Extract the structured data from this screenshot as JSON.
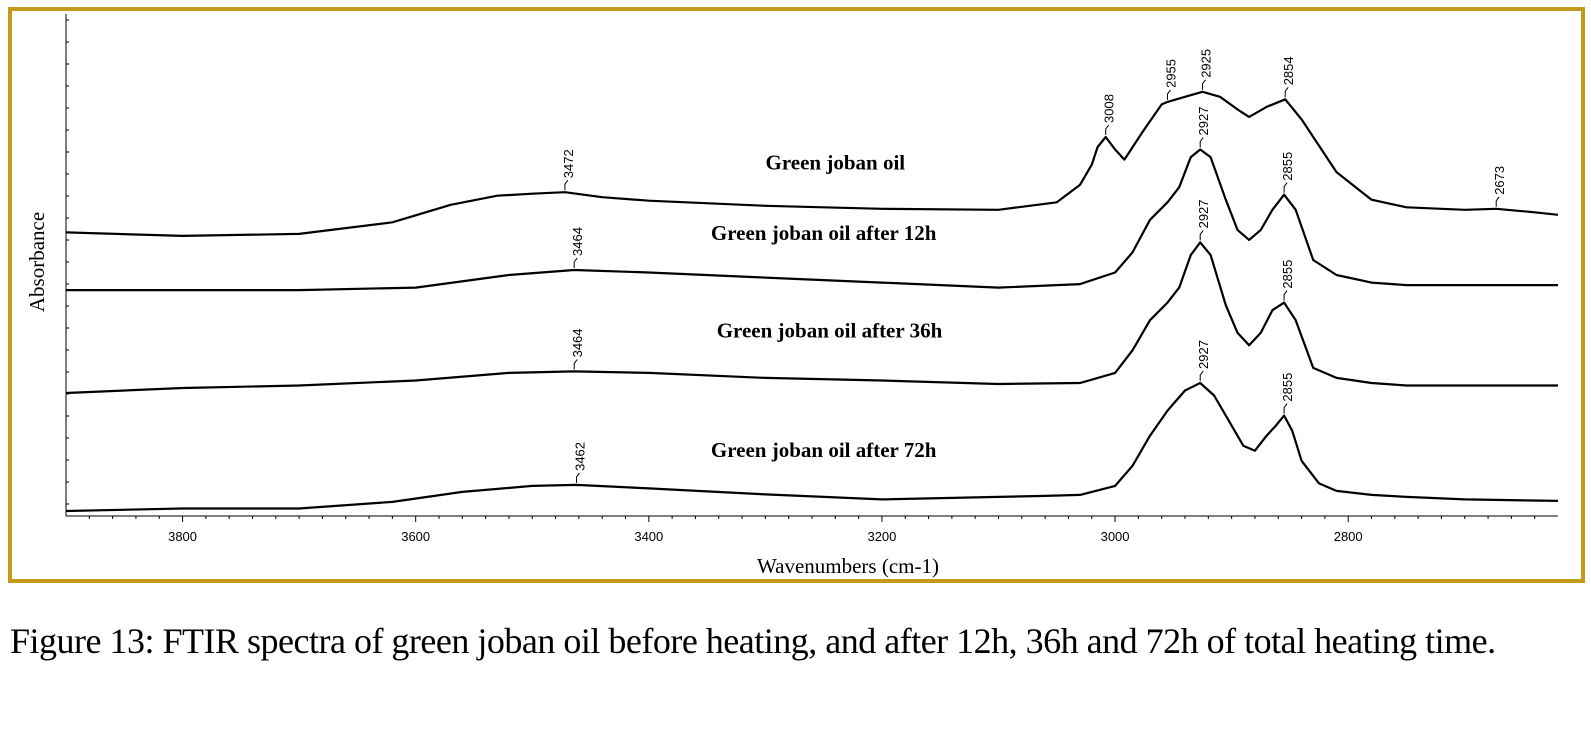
{
  "frame_color": "#c49a1a",
  "caption": "Figure 13: FTIR spectra of green joban oil before heating, and after 12h, 36h and 72h of total heating time.",
  "chart_data": {
    "type": "line",
    "title": "",
    "xlabel": "Wavenumbers (cm-1)",
    "ylabel": "Absorbance",
    "xlim": [
      3900,
      2620
    ],
    "x_reversed": true,
    "y_ticks_labeled": false,
    "x_ticks": [
      3800,
      3600,
      3400,
      3200,
      3000,
      2800
    ],
    "x_tick_labels": [
      "3800",
      "3600",
      "3400",
      "3200",
      "3000",
      "2800"
    ],
    "y_note": "relative absorbance, spectra vertically offset (0 = bottom of plot, 100 = top)",
    "series": [
      {
        "name": "Green joban oil",
        "x": [
          3900,
          3800,
          3700,
          3620,
          3570,
          3530,
          3500,
          3472,
          3440,
          3400,
          3300,
          3200,
          3100,
          3050,
          3030,
          3020,
          3015,
          3008,
          3000,
          2992,
          2975,
          2960,
          2955,
          2940,
          2925,
          2910,
          2895,
          2885,
          2870,
          2854,
          2840,
          2810,
          2780,
          2750,
          2700,
          2673,
          2640,
          2620
        ],
        "y": [
          56.5,
          55.8,
          56.2,
          58.5,
          62.0,
          63.8,
          64.2,
          64.5,
          63.5,
          62.8,
          61.8,
          61.2,
          61.0,
          62.5,
          66.0,
          70.0,
          73.5,
          75.5,
          73.0,
          71.0,
          77.0,
          82.0,
          82.5,
          83.5,
          84.5,
          83.5,
          81.0,
          79.5,
          81.5,
          83.0,
          79.0,
          68.5,
          63.0,
          61.5,
          61.0,
          61.2,
          60.5,
          60.0
        ],
        "peaks": [
          {
            "x": 3472,
            "label": "3472"
          },
          {
            "x": 3008,
            "label": "3008"
          },
          {
            "x": 2955,
            "label": "2955"
          },
          {
            "x": 2925,
            "label": "2925"
          },
          {
            "x": 2854,
            "label": "2854"
          },
          {
            "x": 2673,
            "label": "2673"
          }
        ]
      },
      {
        "name": "Green joban oil after 12h",
        "x": [
          3900,
          3800,
          3700,
          3600,
          3520,
          3464,
          3400,
          3300,
          3200,
          3100,
          3030,
          3000,
          2985,
          2970,
          2955,
          2945,
          2935,
          2927,
          2918,
          2905,
          2895,
          2885,
          2875,
          2865,
          2855,
          2845,
          2830,
          2810,
          2780,
          2750,
          2700,
          2620
        ],
        "y": [
          45.0,
          45.0,
          45.0,
          45.5,
          48.0,
          49.0,
          48.5,
          47.5,
          46.5,
          45.5,
          46.2,
          48.5,
          52.5,
          59.0,
          62.5,
          65.5,
          71.5,
          73.0,
          71.5,
          63.0,
          57.0,
          55.0,
          57.0,
          61.0,
          64.0,
          61.0,
          51.0,
          48.0,
          46.5,
          46.0,
          46.0,
          46.0
        ],
        "peaks": [
          {
            "x": 3464,
            "label": "3464"
          },
          {
            "x": 2927,
            "label": "2927"
          },
          {
            "x": 2855,
            "label": "2855"
          }
        ]
      },
      {
        "name": "Green joban oil after 36h",
        "x": [
          3900,
          3800,
          3700,
          3600,
          3520,
          3464,
          3400,
          3300,
          3200,
          3100,
          3030,
          3000,
          2985,
          2970,
          2955,
          2945,
          2935,
          2927,
          2918,
          2905,
          2895,
          2885,
          2875,
          2865,
          2855,
          2845,
          2830,
          2810,
          2780,
          2750,
          2700,
          2620
        ],
        "y": [
          24.5,
          25.5,
          26.0,
          27.0,
          28.5,
          28.8,
          28.5,
          27.5,
          27.0,
          26.3,
          26.5,
          28.5,
          33.0,
          39.0,
          42.5,
          45.5,
          52.0,
          54.5,
          52.0,
          42.0,
          36.5,
          34.0,
          36.5,
          41.0,
          42.5,
          39.0,
          29.5,
          27.5,
          26.5,
          26.0,
          26.0,
          26.0
        ],
        "peaks": [
          {
            "x": 3464,
            "label": "3464"
          },
          {
            "x": 2927,
            "label": "2927"
          },
          {
            "x": 2855,
            "label": "2855"
          }
        ]
      },
      {
        "name": "Green joban oil after 72h",
        "x": [
          3900,
          3800,
          3700,
          3620,
          3560,
          3500,
          3462,
          3400,
          3300,
          3200,
          3100,
          3060,
          3030,
          3000,
          2985,
          2970,
          2955,
          2940,
          2927,
          2915,
          2900,
          2890,
          2880,
          2870,
          2862,
          2855,
          2848,
          2840,
          2825,
          2810,
          2780,
          2750,
          2700,
          2620
        ],
        "y": [
          1.0,
          1.5,
          1.5,
          2.8,
          4.8,
          6.0,
          6.2,
          5.5,
          4.3,
          3.3,
          3.8,
          4.0,
          4.2,
          6.0,
          10.0,
          16.0,
          21.0,
          25.0,
          26.5,
          24.0,
          18.0,
          14.0,
          13.0,
          16.0,
          18.0,
          20.0,
          17.0,
          11.0,
          6.5,
          5.0,
          4.2,
          3.8,
          3.3,
          3.0
        ],
        "peaks": [
          {
            "x": 3462,
            "label": "3462"
          },
          {
            "x": 2927,
            "label": "2927"
          },
          {
            "x": 2855,
            "label": "2855"
          }
        ]
      }
    ]
  }
}
